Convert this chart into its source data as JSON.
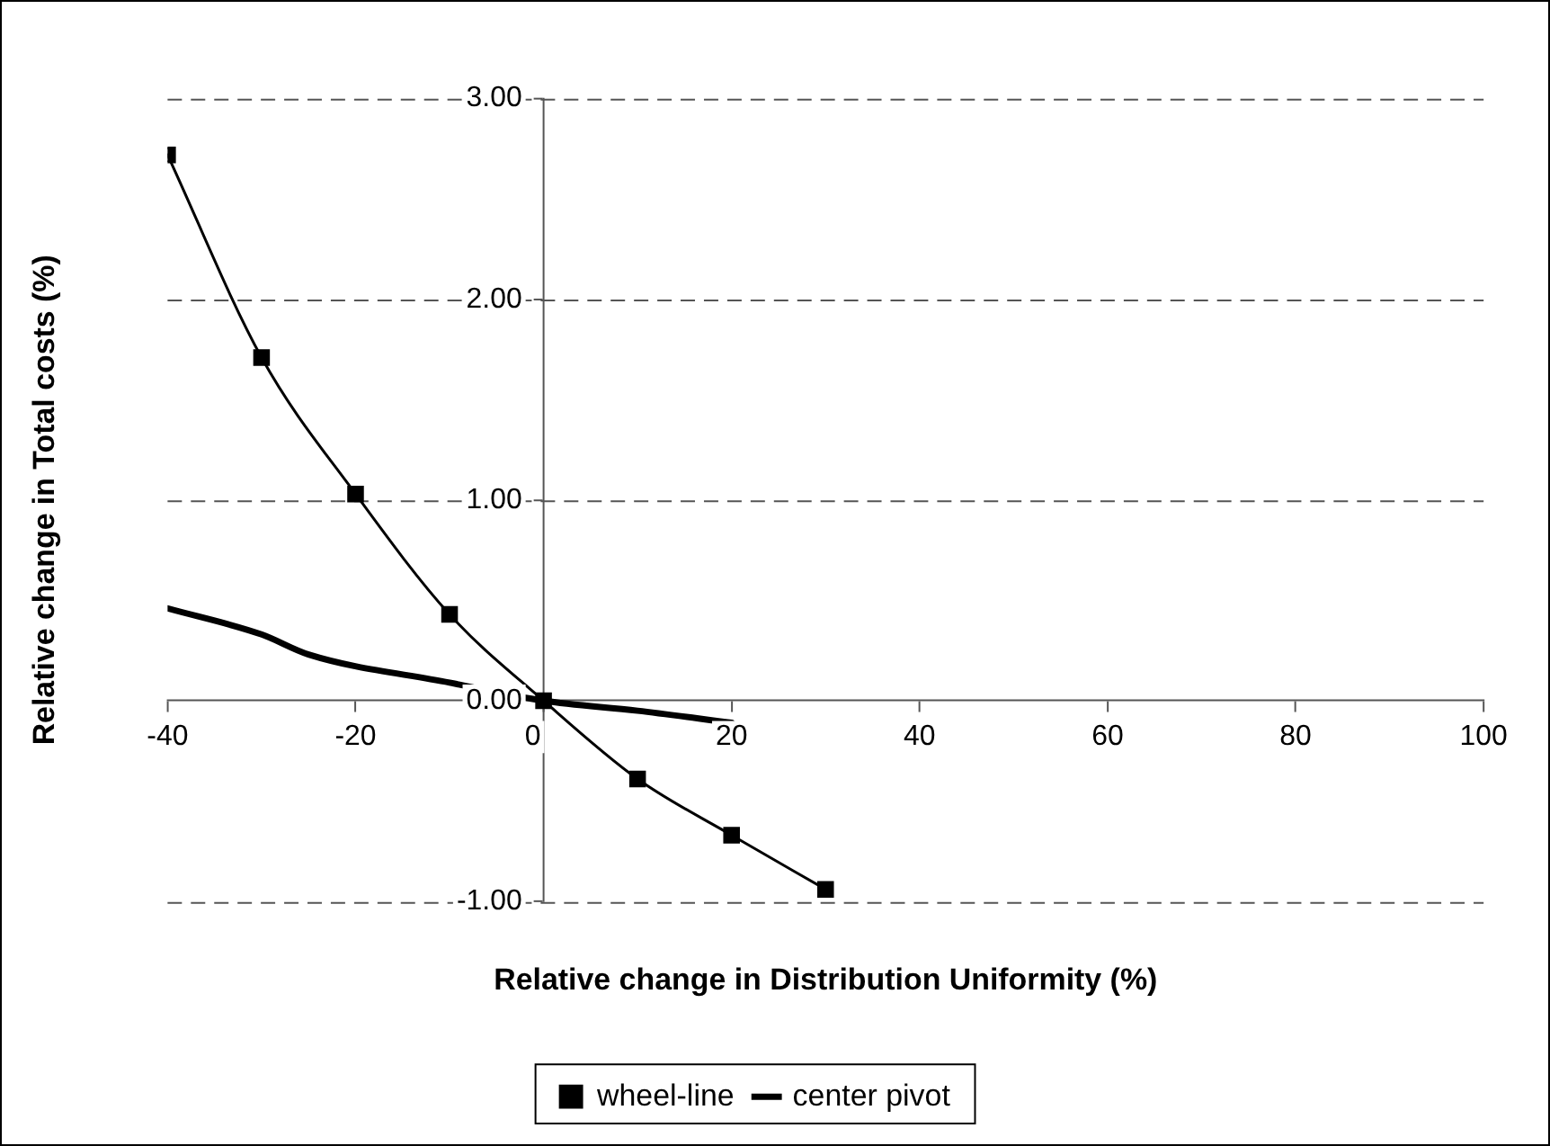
{
  "chart_data": {
    "type": "line",
    "xlabel": "Relative change in Distribution Uniformity (%)",
    "ylabel": "Relative change in Total costs (%)",
    "xlim": [
      -40,
      100
    ],
    "xticks": [
      -40,
      -20,
      0,
      20,
      40,
      60,
      80,
      100
    ],
    "ylim": [
      -1,
      3
    ],
    "yticks": [
      {
        "value": -1,
        "label": "-1.00"
      },
      {
        "value": 0,
        "label": "0.00"
      },
      {
        "value": 1,
        "label": "1.00"
      },
      {
        "value": 2,
        "label": "2.00"
      },
      {
        "value": 3,
        "label": "3.00"
      }
    ],
    "grid": "y",
    "legend": "bottom",
    "series": [
      {
        "name": "wheel-line",
        "color": "#000000",
        "marker": "square",
        "x": [
          -40,
          -30,
          -20,
          -10,
          0,
          10,
          20,
          30
        ],
        "values": [
          2.72,
          1.71,
          1.03,
          0.43,
          0,
          -0.39,
          -0.67,
          -0.94
        ]
      },
      {
        "name": "center pivot",
        "color": "#000000",
        "marker": "none",
        "x": [
          -40,
          -30,
          -25,
          -10,
          0,
          10,
          20
        ],
        "values": [
          0.46,
          0.33,
          0.23,
          0.09,
          0,
          -0.05,
          -0.11
        ]
      }
    ]
  }
}
